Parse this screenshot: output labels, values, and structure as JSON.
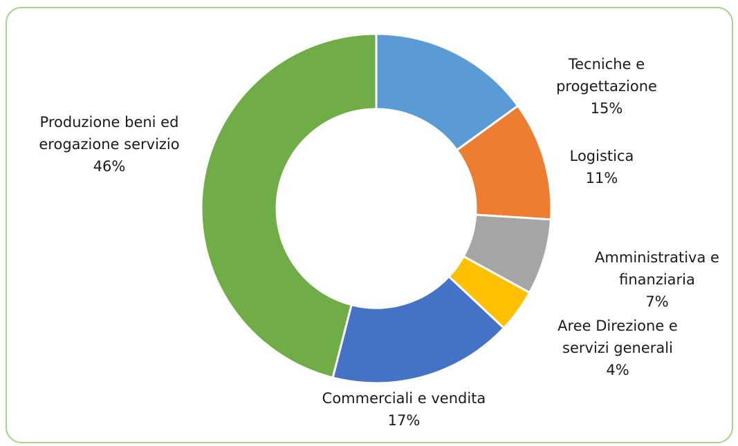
{
  "chart_data": {
    "type": "donut",
    "categories": [
      "Tecniche e progettazione",
      "Logistica",
      "Amministrativa e finanziaria",
      "Aree Direzione e servizi generali",
      "Commerciali e vendita",
      "Produzione beni ed erogazione servizio"
    ],
    "values": [
      15,
      11,
      7,
      4,
      17,
      46
    ],
    "value_labels": [
      "15%",
      "11%",
      "7%",
      "4%",
      "17%",
      "46%"
    ],
    "colors": [
      "#5b9bd5",
      "#ed7d31",
      "#a5a5a5",
      "#ffc000",
      "#4472c4",
      "#70ad47"
    ]
  }
}
